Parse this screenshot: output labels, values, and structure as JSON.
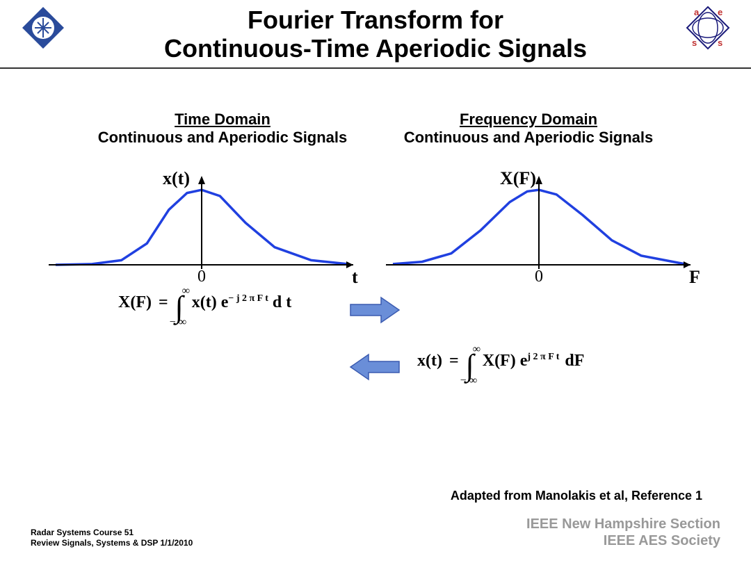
{
  "title": {
    "line1": "Fourier Transform for",
    "line2": "Continuous-Time Aperiodic Signals",
    "fontsize": 36,
    "color": "#000000"
  },
  "logos": {
    "left": {
      "fill": "#2a4b9b",
      "stroke": "#2a4b9b"
    },
    "right": {
      "stroke": "#1a1a7a",
      "text_color": "#c03030",
      "letters": [
        "a",
        "e",
        "s",
        "s"
      ]
    }
  },
  "divider_color": "#333333",
  "domains": {
    "left": {
      "title": "Time Domain",
      "sub": "Continuous and Aperiodic Signals"
    },
    "right": {
      "title": "Frequency Domain",
      "sub": "Continuous and Aperiodic Signals"
    },
    "title_fontsize": 22,
    "sub_fontsize": 22
  },
  "plots": {
    "curve_color": "#2040e0",
    "curve_width": 3.5,
    "axis_color": "#000000",
    "axis_width": 2,
    "left": {
      "y_label": "x(t)",
      "x_label": "t",
      "origin_label": "0",
      "xrange": [
        -4,
        4
      ],
      "curve_pts": [
        [
          -4,
          0
        ],
        [
          -3,
          0.01
        ],
        [
          -2.2,
          0.06
        ],
        [
          -1.5,
          0.28
        ],
        [
          -0.9,
          0.72
        ],
        [
          -0.4,
          0.94
        ],
        [
          0,
          0.98
        ],
        [
          0.5,
          0.9
        ],
        [
          1.2,
          0.55
        ],
        [
          2,
          0.23
        ],
        [
          3,
          0.06
        ],
        [
          4,
          0.01
        ]
      ]
    },
    "right": {
      "y_label": "X(F)",
      "x_label": "F",
      "origin_label": "0",
      "xrange": [
        -5,
        5
      ],
      "curve_pts": [
        [
          -5,
          0.01
        ],
        [
          -4,
          0.04
        ],
        [
          -3,
          0.15
        ],
        [
          -2,
          0.45
        ],
        [
          -1,
          0.82
        ],
        [
          -0.4,
          0.96
        ],
        [
          0,
          0.98
        ],
        [
          0.6,
          0.92
        ],
        [
          1.5,
          0.65
        ],
        [
          2.5,
          0.32
        ],
        [
          3.5,
          0.12
        ],
        [
          5,
          0.01
        ]
      ]
    }
  },
  "formulas": {
    "fwd": {
      "lhs": "X(F)",
      "eq": "=",
      "int_up": "∞",
      "int_dn": "− ∞",
      "rhs1": "x(t) e",
      "exp": "− j 2 π F t",
      "rhs2": "d t"
    },
    "inv": {
      "lhs": "x(t)",
      "eq": "=",
      "int_up": "∞",
      "int_dn": "− ∞",
      "rhs1": "X(F) e",
      "exp": "j 2 π F t",
      "rhs2": "dF"
    }
  },
  "arrows": {
    "fill": "#6a8ed8",
    "stroke": "#3a5ab0",
    "stroke_width": 1.5
  },
  "credit": "Adapted from Manolakis et al, Reference 1",
  "footer": {
    "left_line1": "Radar Systems Course    51",
    "left_line2": "Review Signals, Systems & DSP  1/1/2010",
    "right_line1": "IEEE New Hampshire Section",
    "right_line2": "IEEE AES Society",
    "right_color": "#999999"
  }
}
